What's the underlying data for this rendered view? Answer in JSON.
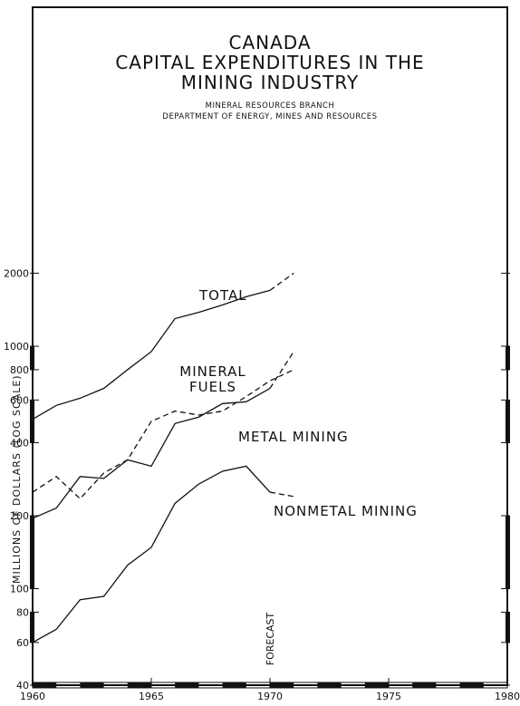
{
  "chart_data": {
    "type": "line",
    "title": [
      "CANADA",
      "CAPITAL EXPENDITURES IN THE",
      "MINING INDUSTRY"
    ],
    "subtitle": [
      "MINERAL RESOURCES BRANCH",
      "DEPARTMENT OF ENERGY, MINES AND RESOURCES"
    ],
    "y_label": "MILLIONS OF DOLLARS (LOG SCALE)",
    "annotation": "FORECAST",
    "forecast_start": 1970,
    "x": [
      1960,
      1961,
      1962,
      1963,
      1964,
      1965,
      1966,
      1967,
      1968,
      1969,
      1970,
      1971
    ],
    "series": [
      {
        "name": "TOTAL",
        "color": "#111111",
        "style": "solid",
        "values": [
          500,
          570,
          610,
          670,
          800,
          950,
          1300,
          1380,
          1480,
          1600,
          1700,
          2000
        ]
      },
      {
        "name": "MINERAL FUELS",
        "color": "#111111",
        "style": "dashed",
        "values": [
          250,
          290,
          235,
          300,
          340,
          490,
          540,
          520,
          540,
          620,
          720,
          800
        ]
      },
      {
        "name": "METAL MINING",
        "color": "#111111",
        "style": "solid",
        "values": [
          195,
          215,
          290,
          285,
          340,
          320,
          480,
          510,
          580,
          590,
          670,
          950
        ]
      },
      {
        "name": "NONMETAL MINING",
        "color": "#111111",
        "style": "solid",
        "values": [
          60,
          68,
          90,
          93,
          125,
          148,
          225,
          270,
          305,
          320,
          250,
          240
        ]
      }
    ],
    "xlim": [
      1960,
      1980
    ],
    "xticks": [
      1960,
      1965,
      1970,
      1975,
      1980
    ],
    "ylim": [
      40,
      25000
    ],
    "yticks": [
      40,
      60,
      80,
      100,
      200,
      400,
      600,
      800,
      1000,
      2000
    ],
    "log_scale": true
  }
}
